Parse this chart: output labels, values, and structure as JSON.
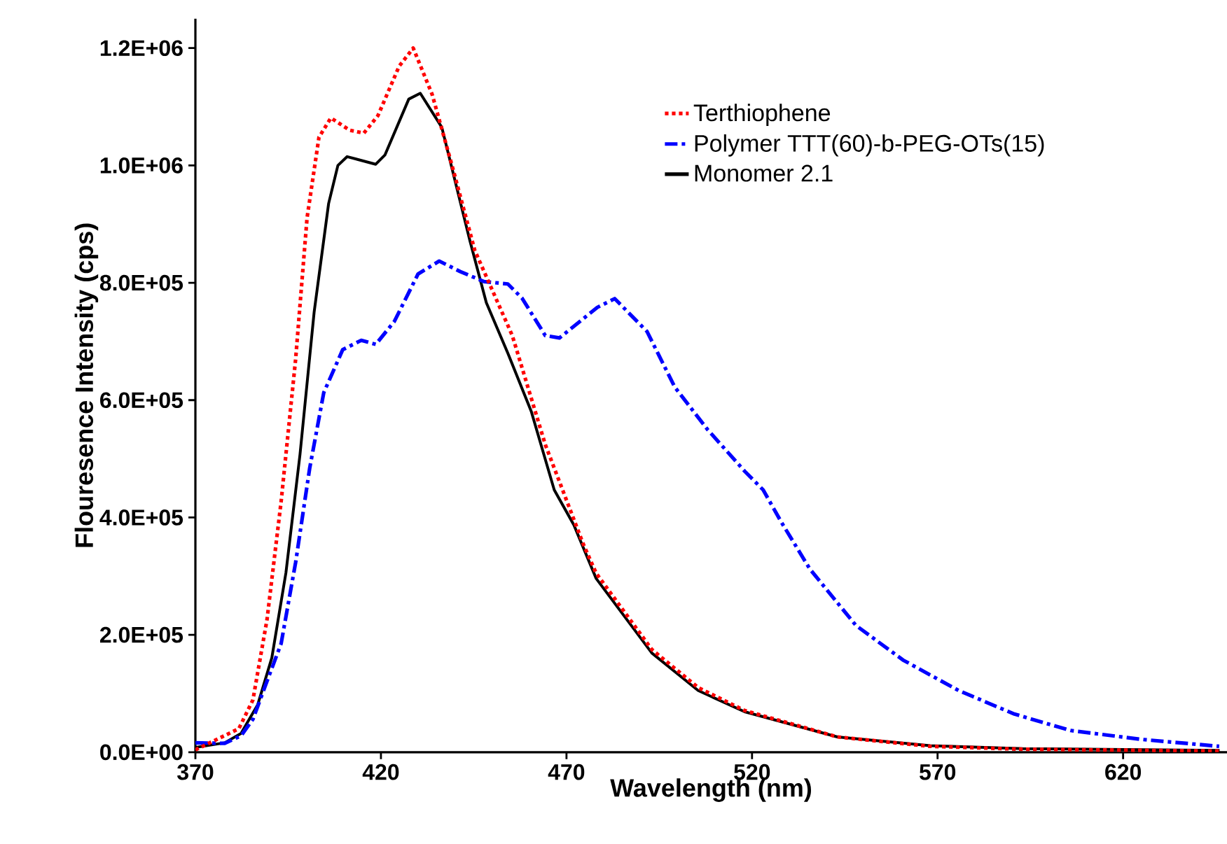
{
  "chart_data": {
    "type": "line",
    "xlabel": "Wavelength (nm)",
    "ylabel": "Flouresence Intensity (cps)",
    "xlim": [
      370,
      648
    ],
    "ylim": [
      0,
      1250000
    ],
    "xticks": [
      370,
      420,
      470,
      520,
      570,
      620
    ],
    "yticks": [
      {
        "value": 0,
        "label": "0.0E+00"
      },
      {
        "value": 200000,
        "label": "2.0E+05"
      },
      {
        "value": 400000,
        "label": "4.0E+05"
      },
      {
        "value": 600000,
        "label": "6.0E+05"
      },
      {
        "value": 800000,
        "label": "8.0E+05"
      },
      {
        "value": 1000000,
        "label": "1.0E+06"
      },
      {
        "value": 1200000,
        "label": "1.2E+06"
      }
    ],
    "grid": false,
    "legend": "top right",
    "marker": "none",
    "series": [
      {
        "name": "Terthiophene",
        "color": "#ff0000",
        "line_style": "dotted",
        "x": [
          370,
          381.7,
          385.5,
          389.3,
          393.1,
          397,
          400.1,
          403.3,
          406.5,
          411.6,
          415.4,
          419.2,
          424.9,
          428.7,
          433.8,
          439.5,
          445.3,
          455.4,
          464.3,
          474.5,
          478,
          493,
          505.5,
          518,
          543,
          568,
          593,
          646
        ],
        "values": [
          4000,
          40000,
          89000,
          226000,
          427000,
          669000,
          911000,
          1048000,
          1081000,
          1060000,
          1055000,
          1085000,
          1169000,
          1200000,
          1121000,
          992000,
          855000,
          710000,
          524000,
          355000,
          305000,
          175000,
          110000,
          71000,
          26000,
          10000,
          5000,
          2000
        ]
      },
      {
        "name": "Polymer TTT(60)-b-PEG-OTs(15)",
        "color": "#0000ff",
        "line_style": "dashed",
        "x": [
          370,
          377.9,
          382.3,
          385.5,
          389.3,
          393.1,
          397,
          400.8,
          404.6,
          409.7,
          414.7,
          418.6,
          423.6,
          430,
          435.7,
          441.4,
          447.8,
          454.2,
          458,
          464.3,
          468.1,
          478.3,
          483,
          491.7,
          499.2,
          508,
          518,
          523,
          528,
          535.6,
          548,
          560.7,
          575.7,
          590.7,
          605.8,
          624.6,
          645.9
        ],
        "values": [
          16000,
          15000,
          28000,
          56000,
          121000,
          185000,
          323000,
          484000,
          613000,
          686000,
          702000,
          695000,
          734000,
          815000,
          837000,
          819000,
          802000,
          798000,
          774000,
          710000,
          706000,
          758000,
          773000,
          717000,
          622000,
          550000,
          479000,
          447000,
          391000,
          312000,
          216000,
          157000,
          105000,
          65000,
          37000,
          22000,
          10000
        ]
      },
      {
        "name": "Monomer 2.1",
        "color": "#000000",
        "line_style": "solid",
        "x": [
          370,
          377.9,
          382.3,
          386.8,
          390.6,
          394.4,
          398.2,
          402,
          405.9,
          408.4,
          410.9,
          418.6,
          421.1,
          427.5,
          430.6,
          436.4,
          440.2,
          444,
          448.4,
          454.2,
          460.5,
          466.7,
          472,
          478,
          493,
          505.5,
          518,
          543,
          568,
          593,
          646
        ],
        "values": [
          8000,
          16000,
          32000,
          81000,
          161000,
          306000,
          508000,
          750000,
          935000,
          1000000,
          1015000,
          1002000,
          1018000,
          1113000,
          1123000,
          1065000,
          968000,
          871000,
          766000,
          680000,
          581000,
          447000,
          387000,
          296000,
          169000,
          105000,
          69000,
          26000,
          11000,
          6000,
          3000
        ]
      }
    ]
  }
}
